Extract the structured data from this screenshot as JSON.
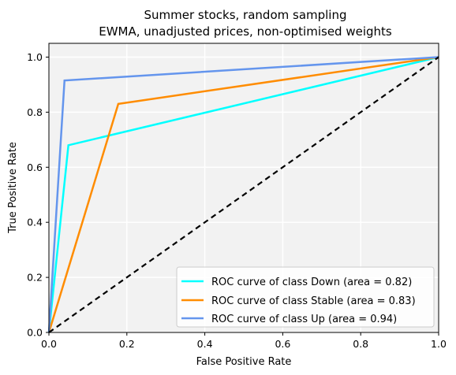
{
  "chart_data": {
    "type": "line",
    "title": "Summer stocks, random sampling",
    "subtitle": "EWMA, unadjusted prices, non-optimised weights",
    "xlabel": "False Positive Rate",
    "ylabel": "True Positive Rate",
    "xlim": [
      0.0,
      1.0
    ],
    "ylim": [
      0.0,
      1.05
    ],
    "xticks": [
      "0.0",
      "0.2",
      "0.4",
      "0.6",
      "0.8",
      "1.0"
    ],
    "yticks": [
      "0.0",
      "0.2",
      "0.4",
      "0.6",
      "0.8",
      "1.0"
    ],
    "grid": true,
    "legend_position": "bottom-right",
    "series": [
      {
        "name": "ROC curve of class Down (area = 0.82)",
        "color": "#00ffff",
        "x": [
          0.0,
          0.05,
          1.0
        ],
        "y": [
          0.0,
          0.68,
          1.0
        ]
      },
      {
        "name": "ROC curve of class Stable (area = 0.83)",
        "color": "#ff8c00",
        "x": [
          0.0,
          0.178,
          1.0
        ],
        "y": [
          0.0,
          0.83,
          1.0
        ]
      },
      {
        "name": "ROC curve of class Up (area = 0.94)",
        "color": "#6495ed",
        "x": [
          0.0,
          0.04,
          1.0
        ],
        "y": [
          0.0,
          0.915,
          1.0
        ]
      }
    ],
    "reference_line": {
      "color": "#000000",
      "style": "dashed",
      "x": [
        0.0,
        1.0
      ],
      "y": [
        0.0,
        1.0
      ]
    }
  }
}
